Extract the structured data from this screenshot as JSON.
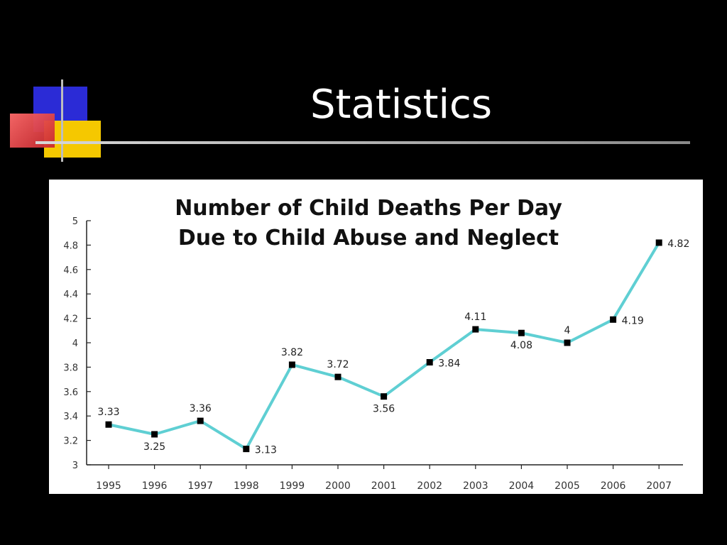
{
  "slide": {
    "title": "Statistics"
  },
  "colors": {
    "background": "#000000",
    "line": "#5fcfd3",
    "marker": "#000000",
    "panel": "#ffffff"
  },
  "chart_data": {
    "type": "line",
    "title": "Number of Child Deaths Per Day",
    "subtitle": "Due to Child Abuse and Neglect",
    "xlabel": "",
    "ylabel": "",
    "categories": [
      "1995",
      "1996",
      "1997",
      "1998",
      "1999",
      "2000",
      "2001",
      "2002",
      "2003",
      "2004",
      "2005",
      "2006",
      "2007"
    ],
    "series": [
      {
        "values": [
          3.33,
          3.25,
          3.36,
          3.13,
          3.82,
          3.72,
          3.56,
          3.84,
          4.11,
          4.08,
          4.0,
          4.19,
          4.82
        ]
      }
    ],
    "data_labels": [
      "3.33",
      "3.25",
      "3.36",
      "3.13",
      "3.82",
      "3.72",
      "3.56",
      "3.84",
      "4.11",
      "4.08",
      "4",
      "4.19",
      "4.82"
    ],
    "ylim": [
      3,
      5
    ],
    "yticks": [
      "3",
      "3.2",
      "3.4",
      "3.6",
      "3.8",
      "4",
      "4.2",
      "4.4",
      "4.6",
      "4.8",
      "5"
    ],
    "grid": false,
    "legend": "none"
  }
}
